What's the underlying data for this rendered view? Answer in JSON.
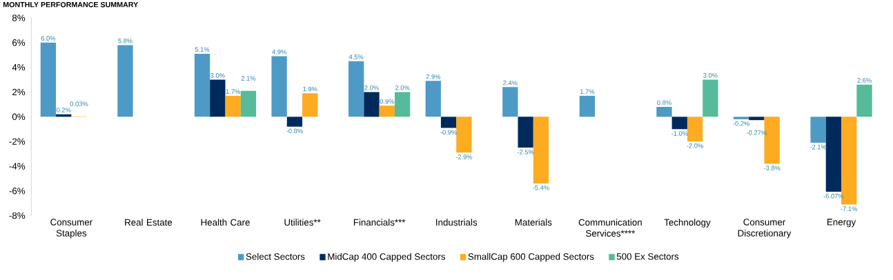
{
  "chart_data": {
    "type": "bar",
    "title": "MONTHLY PERFORMANCE SUMMARY",
    "categories": [
      "Consumer Staples",
      "Real Estate",
      "Health Care",
      "Utilities**",
      "Financials***",
      "Industrials",
      "Materials",
      "Communication Services****",
      "Technology",
      "Consumer Discretionary",
      "Energy"
    ],
    "series": [
      {
        "name": "Select Sectors",
        "color": "#4e9ac6",
        "values": [
          6.0,
          5.8,
          5.1,
          4.9,
          4.5,
          2.9,
          2.4,
          1.7,
          0.8,
          -0.2,
          -2.1
        ],
        "value_labels": [
          "6.0%",
          "5.8%",
          "5.1%",
          "4.9%",
          "4.5%",
          "2.9%",
          "2.4%",
          "1.7%",
          "0.8%",
          "-0.2%",
          "-2.1%"
        ]
      },
      {
        "name": "MidCap 400 Capped Sectors",
        "color": "#002a5c",
        "values": [
          0.2,
          null,
          3.0,
          -0.8,
          2.0,
          -0.9,
          -2.5,
          null,
          -1.0,
          -0.27,
          -6.07
        ],
        "value_labels": [
          "0.2%",
          null,
          "3.0%",
          "-0.8%",
          "2.0%",
          "-0.9%",
          "-2.5%",
          null,
          "-1.0%",
          "-0.27%",
          "-6.07%"
        ]
      },
      {
        "name": "SmallCap 600 Capped Sectors",
        "color": "#fdab20",
        "values": [
          0.03,
          null,
          1.7,
          1.9,
          0.9,
          -2.9,
          -5.4,
          null,
          -2.0,
          -3.8,
          -7.1
        ],
        "value_labels": [
          "0.03%",
          null,
          "1.7%",
          "1.9%",
          "0.9%",
          "-2.9%",
          "-5.4%",
          null,
          "-2.0%",
          "-3.8%",
          "-7.1%"
        ]
      },
      {
        "name": "500 Ex Sectors",
        "color": "#55bb9b",
        "values": [
          null,
          null,
          2.1,
          null,
          2.0,
          null,
          null,
          null,
          3.0,
          null,
          2.6
        ],
        "value_labels": [
          null,
          null,
          "2.1%",
          null,
          "2.0%",
          null,
          null,
          null,
          "3.0%",
          null,
          "2.6%"
        ]
      }
    ],
    "ylim": [
      -8,
      8
    ],
    "yticks": [
      {
        "value": -8,
        "label": "-8%"
      },
      {
        "value": -6,
        "label": "-6%"
      },
      {
        "value": -4,
        "label": "-4%"
      },
      {
        "value": -2,
        "label": "-2%"
      },
      {
        "value": 0,
        "label": "0%"
      },
      {
        "value": 2,
        "label": "2%"
      },
      {
        "value": 4,
        "label": "4%"
      },
      {
        "value": 6,
        "label": "6%"
      },
      {
        "value": 8,
        "label": "8%"
      }
    ],
    "legend": "bottom"
  }
}
